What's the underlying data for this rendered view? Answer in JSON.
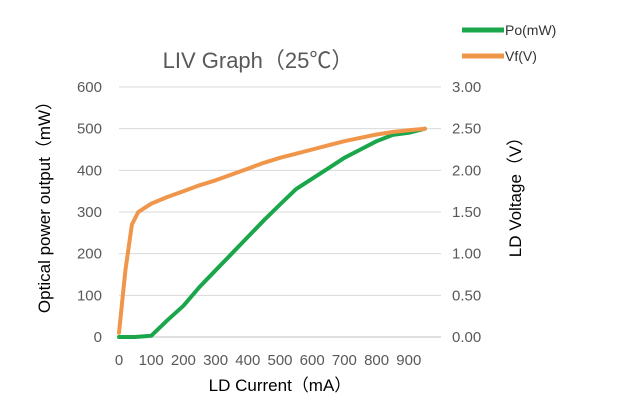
{
  "chart_data": {
    "type": "line",
    "title": "LIV Graph（25℃）",
    "xlabel": "LD Current（mA）",
    "ylabel": "Optical power output（mW）",
    "y2label": "LD Voltage（V）",
    "xlim": [
      0,
      1000
    ],
    "ylim": [
      0,
      600
    ],
    "y2lim": [
      0,
      3
    ],
    "x_ticks": [
      "0",
      "100",
      "200",
      "300",
      "400",
      "500",
      "600",
      "700",
      "800",
      "900"
    ],
    "y_ticks": [
      "0",
      "100",
      "200",
      "300",
      "400",
      "500",
      "600"
    ],
    "y2_ticks": [
      "0.00",
      "0.50",
      "1.00",
      "1.50",
      "2.00",
      "2.50",
      "3.00"
    ],
    "grid": true,
    "legend_position": "top-right",
    "series": [
      {
        "name": "Po(mW)",
        "axis": "left",
        "color": "#1aa64a",
        "x": [
          0,
          50,
          100,
          150,
          200,
          250,
          300,
          350,
          400,
          450,
          500,
          550,
          600,
          650,
          700,
          750,
          800,
          850,
          900,
          950
        ],
        "y": [
          0,
          0,
          3,
          40,
          75,
          120,
          160,
          200,
          240,
          280,
          318,
          355,
          380,
          405,
          430,
          450,
          470,
          485,
          490,
          500
        ]
      },
      {
        "name": "Vf(V)",
        "axis": "right",
        "color": "#f0964b",
        "x": [
          0,
          20,
          40,
          60,
          80,
          100,
          150,
          200,
          250,
          300,
          350,
          400,
          450,
          500,
          550,
          600,
          650,
          700,
          750,
          800,
          850,
          900,
          950
        ],
        "y": [
          0.05,
          0.8,
          1.35,
          1.5,
          1.55,
          1.6,
          1.68,
          1.75,
          1.82,
          1.88,
          1.95,
          2.02,
          2.09,
          2.15,
          2.2,
          2.25,
          2.3,
          2.35,
          2.39,
          2.43,
          2.46,
          2.48,
          2.5
        ]
      }
    ]
  }
}
